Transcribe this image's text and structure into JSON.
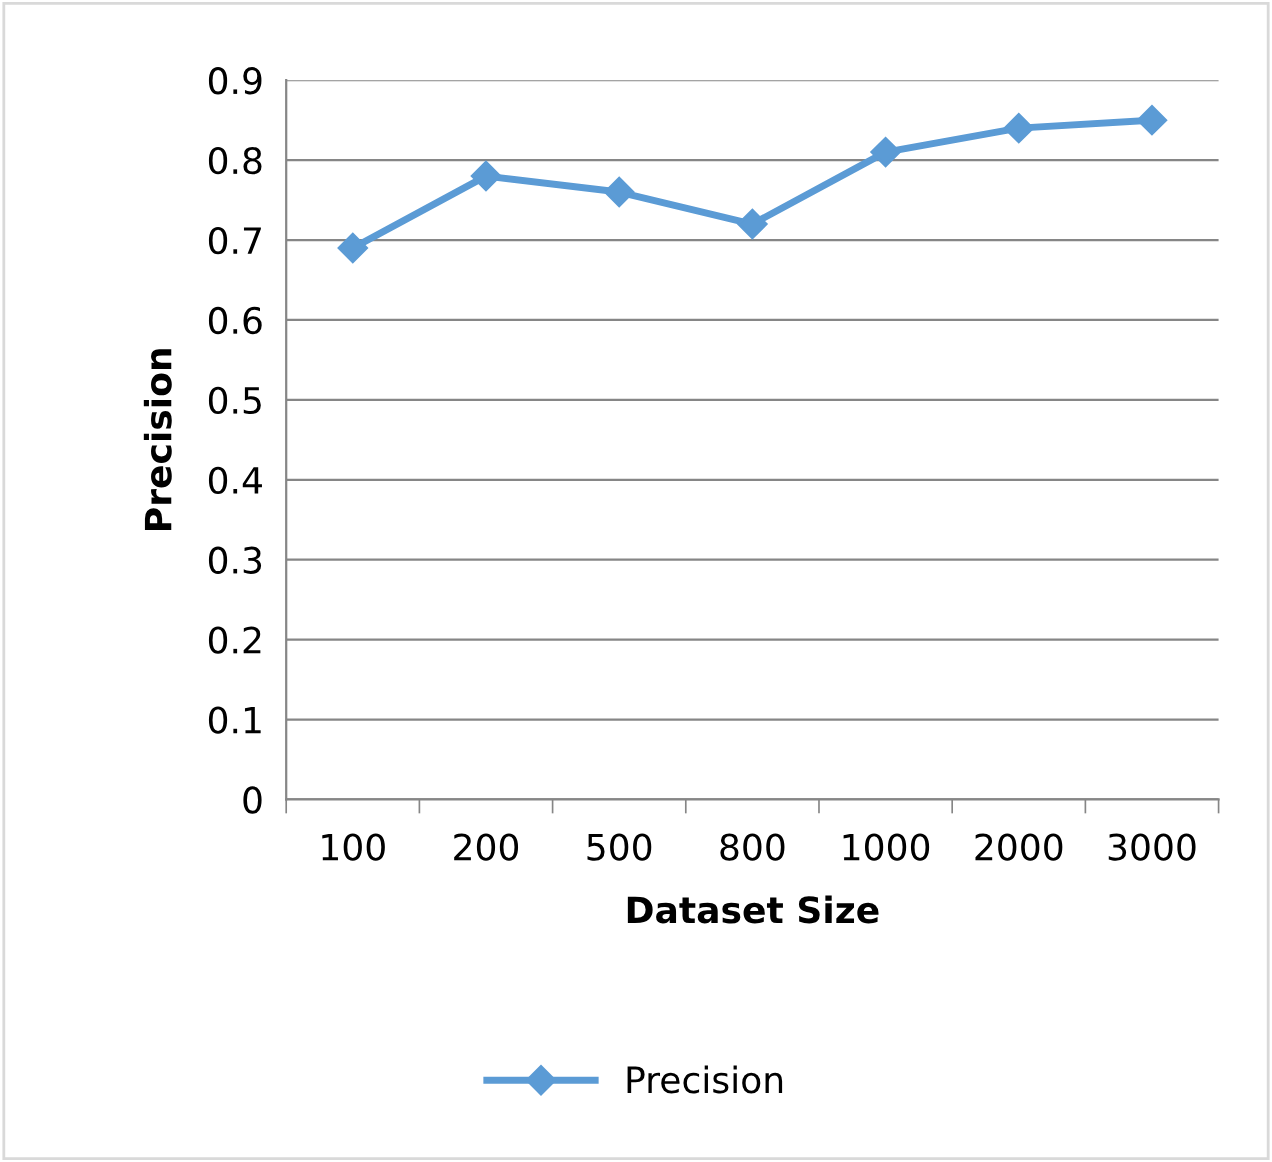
{
  "chart_data": {
    "type": "line",
    "xlabel": "Dataset Size",
    "ylabel": "Precision",
    "categories": [
      "100",
      "200",
      "500",
      "800",
      "1000",
      "2000",
      "3000"
    ],
    "series": [
      {
        "name": "Precision",
        "color": "#5b9bd5",
        "values": [
          0.69,
          0.78,
          0.76,
          0.72,
          0.81,
          0.84,
          0.85
        ]
      }
    ],
    "ylim": [
      0,
      0.9
    ],
    "yticks": [
      0,
      0.1,
      0.2,
      0.3,
      0.4,
      0.5,
      0.6,
      0.7,
      0.8,
      0.9
    ],
    "grid": "y",
    "legend": "bottom",
    "marker": "diamond",
    "line_style": "solid"
  }
}
